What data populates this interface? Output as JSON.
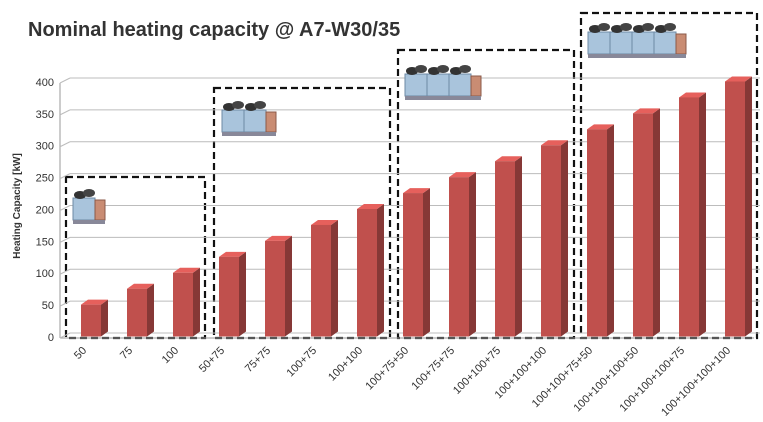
{
  "chart_data": {
    "type": "bar",
    "title": "Nominal heating capacity @ A7-W30/35",
    "y_label": "Heating Capacity [kW]",
    "categories": [
      "50",
      "75",
      "100",
      "50+75",
      "75+75",
      "100+75",
      "100+100",
      "100+75+50",
      "100+75+75",
      "100+100+75",
      "100+100+100",
      "100+100+75+50",
      "100+100+100+50",
      "100+100+100+75",
      "100+100+100+100"
    ],
    "values": [
      50,
      75,
      100,
      125,
      150,
      175,
      200,
      225,
      250,
      275,
      300,
      325,
      350,
      375,
      400
    ],
    "color": "#c0504d",
    "ylim": [
      0,
      400
    ],
    "yticks": [
      0,
      50,
      100,
      150,
      200,
      250,
      300,
      350,
      400
    ],
    "grid": true
  }
}
